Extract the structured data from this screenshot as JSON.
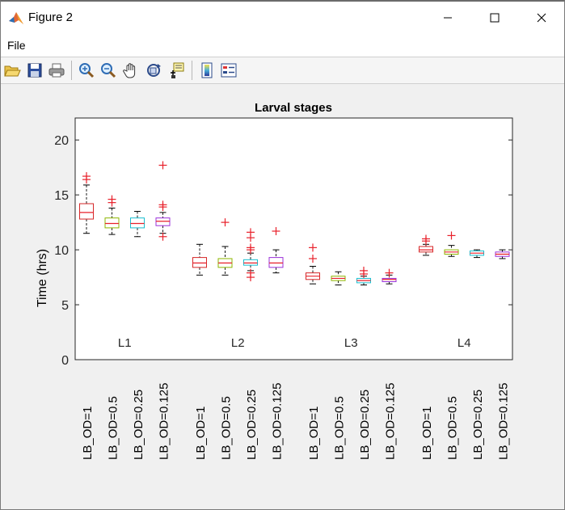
{
  "window": {
    "title": "Figure 2",
    "menu": [
      "File"
    ],
    "toolbar_icons": [
      "open-icon",
      "save-icon",
      "print-icon",
      "zoom-in-icon",
      "zoom-out-icon",
      "pan-icon",
      "rotate-3d-icon",
      "data-cursor-icon",
      "colorbar-icon",
      "legend-icon"
    ]
  },
  "chart_data": {
    "type": "box",
    "title": "Larval stages",
    "ylabel": "Time (hrs)",
    "xlabel": "",
    "ylim": [
      0,
      22
    ],
    "yticks": [
      0,
      5,
      10,
      15,
      20
    ],
    "grid": false,
    "categories": [
      "LB_OD=1",
      "LB_OD=0.5",
      "LB_OD=0.25",
      "LB_OD=0.125",
      "LB_OD=1",
      "LB_OD=0.5",
      "LB_OD=0.25",
      "LB_OD=0.125",
      "LB_OD=1",
      "LB_OD=0.5",
      "LB_OD=0.25",
      "LB_OD=0.125",
      "LB_OD=1",
      "LB_OD=0.5",
      "LB_OD=0.25",
      "LB_OD=0.125"
    ],
    "group_labels": [
      "L1",
      "L2",
      "L3",
      "L4"
    ],
    "box_colors": [
      "#d62728",
      "#8db600",
      "#17becf",
      "#9b30d9"
    ],
    "outlier_color": "#e8212b",
    "boxes": [
      {
        "q1": 12.8,
        "median": 13.4,
        "q3": 14.2,
        "whisker_low": 11.5,
        "whisker_high": 15.9,
        "outliers": [
          16.4,
          16.7
        ]
      },
      {
        "q1": 12.0,
        "median": 12.4,
        "q3": 12.9,
        "whisker_low": 11.4,
        "whisker_high": 13.8,
        "outliers": [
          14.3,
          14.6
        ]
      },
      {
        "q1": 12.0,
        "median": 12.4,
        "q3": 12.9,
        "whisker_low": 11.2,
        "whisker_high": 13.5,
        "outliers": []
      },
      {
        "q1": 12.2,
        "median": 12.6,
        "q3": 12.9,
        "whisker_low": 11.5,
        "whisker_high": 13.4,
        "outliers": [
          11.2,
          13.9,
          14.1,
          17.7
        ]
      },
      {
        "q1": 8.4,
        "median": 8.8,
        "q3": 9.3,
        "whisker_low": 7.7,
        "whisker_high": 10.5,
        "outliers": []
      },
      {
        "q1": 8.4,
        "median": 8.8,
        "q3": 9.2,
        "whisker_low": 7.7,
        "whisker_high": 10.3,
        "outliers": [
          12.5
        ]
      },
      {
        "q1": 8.6,
        "median": 8.8,
        "q3": 9.1,
        "whisker_low": 8.1,
        "whisker_high": 9.7,
        "outliers": [
          7.5,
          7.9,
          10.0,
          10.2,
          11.1,
          11.6
        ]
      },
      {
        "q1": 8.4,
        "median": 8.8,
        "q3": 9.3,
        "whisker_low": 7.9,
        "whisker_high": 10.0,
        "outliers": [
          11.7
        ]
      },
      {
        "q1": 7.3,
        "median": 7.6,
        "q3": 7.9,
        "whisker_low": 6.9,
        "whisker_high": 8.5,
        "outliers": [
          9.2,
          10.2
        ]
      },
      {
        "q1": 7.2,
        "median": 7.4,
        "q3": 7.6,
        "whisker_low": 6.8,
        "whisker_high": 8.0,
        "outliers": []
      },
      {
        "q1": 7.0,
        "median": 7.2,
        "q3": 7.4,
        "whisker_low": 6.8,
        "whisker_high": 7.6,
        "outliers": [
          7.8,
          8.1
        ]
      },
      {
        "q1": 7.1,
        "median": 7.3,
        "q3": 7.4,
        "whisker_low": 6.9,
        "whisker_high": 7.7,
        "outliers": [
          7.9
        ]
      },
      {
        "q1": 9.8,
        "median": 10.0,
        "q3": 10.3,
        "whisker_low": 9.5,
        "whisker_high": 10.5,
        "outliers": [
          10.8,
          11.0
        ]
      },
      {
        "q1": 9.6,
        "median": 9.8,
        "q3": 10.0,
        "whisker_low": 9.4,
        "whisker_high": 10.4,
        "outliers": [
          11.3
        ]
      },
      {
        "q1": 9.5,
        "median": 9.7,
        "q3": 9.9,
        "whisker_low": 9.3,
        "whisker_high": 10.0,
        "outliers": []
      },
      {
        "q1": 9.4,
        "median": 9.6,
        "q3": 9.8,
        "whisker_low": 9.2,
        "whisker_high": 10.0,
        "outliers": []
      }
    ]
  }
}
